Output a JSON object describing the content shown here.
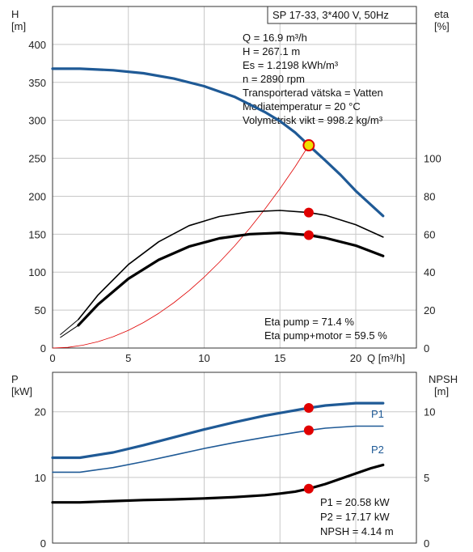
{
  "chart_data": [
    {
      "type": "line",
      "title": "SP 17-33, 3*400 V, 50Hz",
      "xlabel": "Q [m³/h]",
      "ylabel": "H [m]",
      "ylabel_line1": "H",
      "ylabel_line2": "[m]",
      "y2label_line1": "eta",
      "y2label_line2": "[%]",
      "xlabel_text": "Q [m³/h]",
      "xlim": [
        0,
        24
      ],
      "ylim": [
        0,
        450
      ],
      "y2lim": [
        0,
        180
      ],
      "x_ticks": [
        "0",
        "5",
        "10",
        "15",
        "20"
      ],
      "y_ticks": [
        "0",
        "50",
        "100",
        "150",
        "200",
        "250",
        "300",
        "350",
        "400"
      ],
      "y2_ticks": [
        "0",
        "20",
        "40",
        "60",
        "80",
        "100"
      ],
      "grid": true,
      "info_lines": [
        "Q = 16.9 m³/h",
        "H = 267.1 m",
        "Es = 1.2198 kWh/m³",
        "n = 2890 rpm",
        "Transporterad vätska = Vatten",
        "Mediatemperatur = 20 °C",
        "Volymetrisk vikt = 998.2 kg/m³"
      ],
      "eta_lines": [
        "Eta pump = 71.4 %",
        "Eta pump+motor = 59.5 %"
      ],
      "series": [
        {
          "role": "head",
          "color": "#1f5a96",
          "axis": "left",
          "x": [
            0,
            1.8,
            4,
            6,
            8,
            10,
            12,
            14,
            15,
            16,
            16.9,
            18,
            19,
            20,
            21.8
          ],
          "y": [
            368,
            368,
            366,
            362,
            355,
            345,
            331,
            311,
            299,
            284,
            267,
            247,
            228,
            207,
            174
          ]
        },
        {
          "role": "head-system",
          "color": "#e00000",
          "axis": "left",
          "x": [
            0,
            1,
            2,
            3,
            4,
            5,
            6,
            7,
            8,
            9,
            10,
            11,
            12,
            13,
            14,
            15,
            16,
            16.9
          ],
          "y": [
            0,
            0.9,
            3.7,
            8.4,
            14.9,
            23.3,
            33.6,
            45.7,
            59.7,
            75.6,
            93.4,
            113,
            134.4,
            157.7,
            182.9,
            210,
            238.9,
            267.1
          ]
        },
        {
          "role": "eta-pump",
          "color": "#000000",
          "axis": "right",
          "x": [
            1.7,
            3,
            5,
            7,
            9,
            11,
            13,
            15,
            16.9,
            18,
            20,
            21.8
          ],
          "y": [
            15,
            28,
            44,
            56,
            64.5,
            69.3,
            71.8,
            72.5,
            71.4,
            70,
            65,
            58.5
          ]
        },
        {
          "role": "eta-pump-motor",
          "color": "#000000",
          "axis": "right",
          "x": [
            1.7,
            3,
            5,
            7,
            9,
            11,
            13,
            15,
            16.9,
            18,
            20,
            21.8
          ],
          "y": [
            12,
            23,
            36.5,
            46.5,
            53.5,
            57.8,
            60,
            60.7,
            59.5,
            58,
            54,
            48.5
          ]
        }
      ],
      "markers": [
        {
          "role": "head",
          "x": 16.9,
          "y": 267.1,
          "axis": "left",
          "style": "ring"
        },
        {
          "role": "eta-pump",
          "x": 16.9,
          "y": 71.4,
          "axis": "right"
        },
        {
          "role": "eta-pump-motor",
          "x": 16.9,
          "y": 59.5,
          "axis": "right"
        }
      ],
      "origin_lines": [
        {
          "role": "eta-pump",
          "x": [
            0.5,
            1.7
          ],
          "y": [
            7,
            15
          ]
        },
        {
          "role": "eta-pump-motor",
          "x": [
            0.5,
            1.7
          ],
          "y": [
            5.5,
            12
          ]
        }
      ],
      "head_shutoff": {
        "x": [
          0,
          1.8
        ],
        "y": [
          368,
          368
        ]
      }
    },
    {
      "type": "line",
      "ylabel_line1": "P",
      "ylabel_line2": "[kW]",
      "y2label_line1": "NPSH",
      "y2label_line2": "[m]",
      "xlim": [
        0,
        24
      ],
      "ylim": [
        0,
        26
      ],
      "y2lim": [
        0,
        13
      ],
      "y_ticks": [
        "0",
        "10",
        "20"
      ],
      "y2_ticks": [
        "0",
        "5",
        "10"
      ],
      "grid": true,
      "info_lines": [
        "P1 = 20.58 kW",
        "P2 = 17.17 kW",
        "NPSH = 4.14 m"
      ],
      "series": [
        {
          "name": "P1",
          "color": "#1f5a96",
          "axis": "left",
          "x": [
            0,
            1.8,
            4,
            6,
            8,
            10,
            12,
            14,
            16.9,
            18,
            20,
            21.8
          ],
          "y": [
            13,
            13,
            13.8,
            14.9,
            16.1,
            17.3,
            18.4,
            19.4,
            20.58,
            20.95,
            21.3,
            21.3
          ]
        },
        {
          "name": "P2",
          "color": "#1f5a96",
          "axis": "left",
          "x": [
            0,
            1.8,
            4,
            6,
            8,
            10,
            12,
            14,
            16.9,
            18,
            20,
            21.8
          ],
          "y": [
            10.8,
            10.8,
            11.5,
            12.4,
            13.4,
            14.4,
            15.3,
            16.1,
            17.17,
            17.5,
            17.8,
            17.8
          ]
        },
        {
          "name": "NPSH",
          "color": "#000000",
          "axis": "right",
          "x": [
            0,
            1.8,
            4,
            6,
            8,
            10,
            12,
            14,
            15,
            16,
            16.9,
            18,
            19,
            20,
            21,
            21.8
          ],
          "y": [
            3.1,
            3.1,
            3.2,
            3.28,
            3.33,
            3.4,
            3.5,
            3.65,
            3.77,
            3.92,
            4.14,
            4.5,
            4.9,
            5.3,
            5.7,
            5.95
          ]
        }
      ],
      "markers": [
        {
          "name": "P1",
          "x": 16.9,
          "y": 20.58,
          "axis": "left"
        },
        {
          "name": "P2",
          "x": 16.9,
          "y": 17.17,
          "axis": "left"
        },
        {
          "name": "NPSH",
          "x": 16.9,
          "y": 4.14,
          "axis": "right"
        }
      ]
    }
  ],
  "colors": {
    "head": "#1f5a96",
    "eta": "#000000",
    "system": "#e00000",
    "marker": "#e00000",
    "marker_ring": "#f0e000"
  }
}
